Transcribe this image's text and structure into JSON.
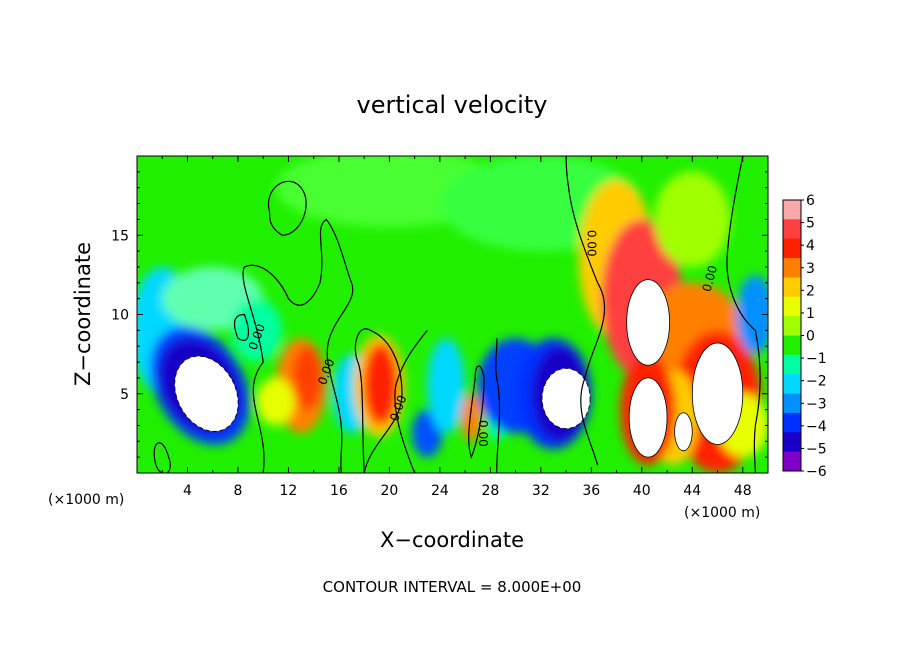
{
  "chart_data": {
    "type": "heatmap",
    "title": "vertical velocity",
    "xlabel": "X−coordinate",
    "ylabel": "Z−coordinate",
    "x_unit_left": "(×1000 m)",
    "x_unit_right": "(×1000 m)",
    "xlim": [
      0,
      50
    ],
    "ylim": [
      0,
      20
    ],
    "x_ticks": [
      4,
      8,
      12,
      16,
      20,
      24,
      28,
      32,
      36,
      40,
      44,
      48
    ],
    "y_ticks": [
      5,
      10,
      15
    ],
    "colorbar": {
      "labels": [
        "6",
        "5",
        "4",
        "3",
        "2",
        "1",
        "0",
        "−1",
        "−2",
        "−3",
        "−4",
        "−5",
        "−6"
      ],
      "colors": [
        "#f8a8a8",
        "#ff4040",
        "#ff2000",
        "#ff8000",
        "#ffcc00",
        "#e8ff00",
        "#a0ff00",
        "#20f000",
        "#00ffa0",
        "#00d8ff",
        "#0090ff",
        "#0030ff",
        "#1800c8",
        "#8000c8"
      ]
    },
    "contour_labels": [
      "0.00",
      "0.00",
      "0.00",
      "0.00",
      "0.00",
      "0.00",
      "0.00"
    ],
    "features": [
      {
        "x": 5.5,
        "z": 5.0,
        "w": -8,
        "note": "strong downdraft core (white, < -6)"
      },
      {
        "x": 34.0,
        "z": 4.7,
        "w": -8,
        "note": "downdraft core (white)"
      },
      {
        "x": 40.5,
        "z": 9.5,
        "w": 8,
        "note": "updraft core (white, > 6)"
      },
      {
        "x": 40.5,
        "z": 3.5,
        "w": 8,
        "note": "updraft core"
      },
      {
        "x": 46.0,
        "z": 5.0,
        "w": 8,
        "note": "updraft core"
      },
      {
        "x": 19.0,
        "z": 5.5,
        "w": 5,
        "note": "updraft"
      },
      {
        "x": 13.0,
        "z": 5.5,
        "w": 3,
        "note": "updraft"
      }
    ]
  },
  "footer": {
    "contour_interval": "CONTOUR INTERVAL = 8.000E+00"
  }
}
